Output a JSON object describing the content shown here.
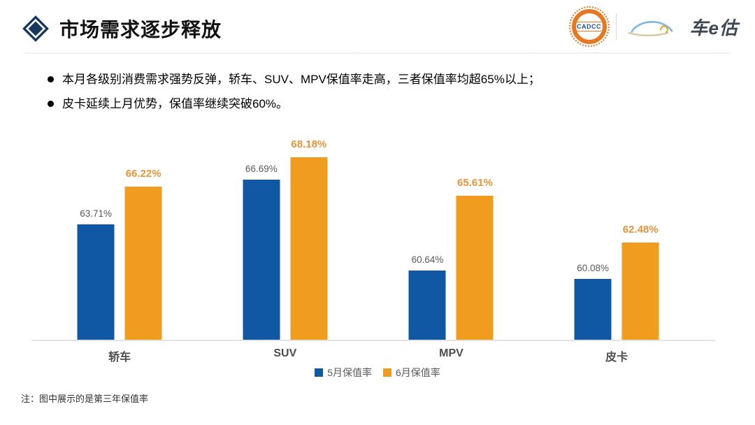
{
  "header": {
    "title": "市场需求逐步释放",
    "cadcc_logo_text": "CADCC",
    "brand_logo_text": "车e估"
  },
  "bullets": [
    "本月各级别消费需求强势反弹，轿车、SUV、MPV保值率走高，三者保值率均超65%以上；",
    "皮卡延续上月优势，保值率继续突破60%。"
  ],
  "chart_data": {
    "type": "bar",
    "categories": [
      "轿车",
      "SUV",
      "MPV",
      "皮卡"
    ],
    "series": [
      {
        "name": "5月保值率",
        "color": "#1057A4",
        "values": [
          63.71,
          66.69,
          60.64,
          60.08
        ]
      },
      {
        "name": "6月保值率",
        "color": "#EF9C1F",
        "values": [
          66.22,
          68.18,
          65.61,
          62.48
        ]
      }
    ],
    "ylim": [
      56,
      70
    ],
    "grid": false,
    "legend_position": "bottom",
    "value_label_format": "0.00%"
  },
  "footnote": "注：图中展示的是第三年保值率",
  "colors": {
    "series1_blue": "#1057A4",
    "series2_orange": "#EF9C1F",
    "orange_value_label": "#E8943A",
    "gray_value_label": "#595959",
    "axis_line": "#E3E3E3",
    "diamond_navy": "#17375E",
    "cadcc_orange": "#E87722",
    "brand_text": "#3D4A55"
  }
}
